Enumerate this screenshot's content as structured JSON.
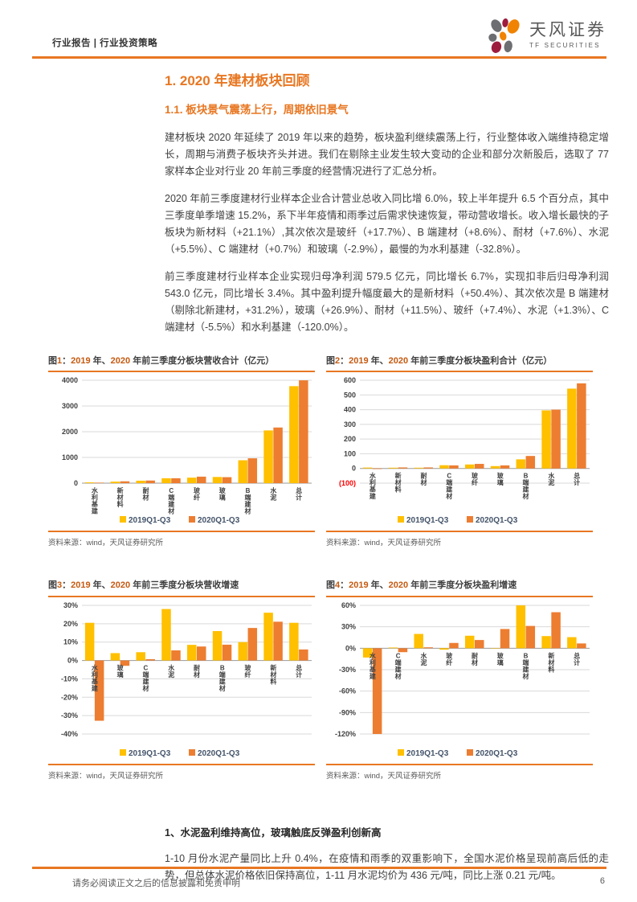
{
  "header": {
    "left": "行业报告 | 行业投资策略",
    "brand": "天风证券",
    "brand_sub": "TF SECURITIES"
  },
  "section": {
    "h1": "1. 2020 年建材板块回顾",
    "h2": "1.1. 板块景气震荡上行，周期依旧景气"
  },
  "paragraphs": [
    "建材板块 2020 年延续了 2019 年以来的趋势，板块盈利继续震荡上行，行业整体收入端维持稳定增长，周期与消费子板块齐头并进。我们在剔除主业发生较大变动的企业和部分次新股后，选取了 77 家样本企业对行业 20 年前三季度的经营情况进行了汇总分析。",
    "2020 年前三季度建材行业样本企业合计营业总收入同比增 6.0%，较上半年提升 6.5 个百分点，其中三季度单季增速 15.2%，系下半年疫情和雨季过后需求快速恢复，带动营收增长。收入增长最快的子板块为新材料（+21.1%）,其次依次是玻纤（+17.7%）、B 端建材（+8.6%）、耐材（+7.6%）、水泥（+5.5%）、C 端建材（+0.7%）和玻璃（-2.9%），最慢的为水利基建（-32.8%）。",
    "前三季度建材行业样本企业实现归母净利润 579.5 亿元，同比增长 6.7%，实现扣非后归母净利润 543.0 亿元，同比增长 3.4%。其中盈利提升幅度最大的是新材料（+50.4%）、其次依次是 B 端建材（剔除北新建材，+31.2%），玻璃（+26.9%）、耐材（+11.5%）、玻纤（+7.4%）、水泥（+1.3%）、C 端建材（-5.5%）和水利基建（-120.0%）。"
  ],
  "figures": [
    {
      "title": "图1：2019 年、2020 年前三季度分板块营收合计（亿元）",
      "source": "资料来源：wind，天风证券研究所"
    },
    {
      "title": "图2：2019 年、2020 年前三季度分板块盈利合计（亿元）",
      "source": "资料来源：wind，天风证券研究所"
    },
    {
      "title": "图3：2019 年、2020 年前三季度分板块营收增速",
      "source": "资料来源：wind，天风证券研究所"
    },
    {
      "title": "图4：2019 年、2020 年前三季度分板块盈利增速",
      "source": "资料来源：wind，天风证券研究所"
    }
  ],
  "chart_data": [
    {
      "type": "bar",
      "title": "图1：2019 年、2020 年前三季度分板块营收合计（亿元）",
      "categories": [
        "水利基建",
        "新材料",
        "耐材",
        "C端建材",
        "玻纤",
        "玻璃",
        "B端建材",
        "水泥",
        "总计"
      ],
      "series": [
        {
          "name": "2019Q1-Q3",
          "color": "#FFC000",
          "values": [
            30,
            60,
            95,
            190,
            215,
            240,
            890,
            2050,
            3770
          ]
        },
        {
          "name": "2020Q1-Q3",
          "color": "#ED7D31",
          "values": [
            20,
            72,
            102,
            191,
            253,
            233,
            966,
            2163,
            3996
          ]
        }
      ],
      "xlabel": "",
      "ylabel": "",
      "ylim": [
        0,
        4000
      ],
      "ytick_step": 1000,
      "tick_format": "number",
      "grid": true,
      "legend_position": "bottom"
    },
    {
      "type": "bar",
      "title": "图2：2019 年、2020 年前三季度分板块盈利合计（亿元）",
      "categories": [
        "水利基建",
        "新材料",
        "耐材",
        "C端建材",
        "玻纤",
        "玻璃",
        "B端建材",
        "水泥",
        "总计"
      ],
      "series": [
        {
          "name": "2019Q1-Q3",
          "color": "#FFC000",
          "values": [
            6,
            5,
            5,
            22,
            27,
            16,
            62,
            395,
            543
          ]
        },
        {
          "name": "2020Q1-Q3",
          "color": "#ED7D31",
          "values": [
            -4,
            7,
            7,
            21,
            31,
            21,
            85,
            400,
            579
          ]
        }
      ],
      "xlabel": "",
      "ylabel": "",
      "ylim": [
        -100,
        600
      ],
      "ytick_step": 100,
      "tick_format": "paren_negative",
      "grid": true,
      "legend_position": "bottom"
    },
    {
      "type": "bar",
      "title": "图3：2019 年、2020 年前三季度分板块营收增速",
      "categories": [
        "水利基建",
        "玻璃",
        "C端建材",
        "水泥",
        "耐材",
        "B端建材",
        "玻纤",
        "新材料",
        "总计"
      ],
      "series": [
        {
          "name": "2019Q1-Q3",
          "color": "#FFC000",
          "values": [
            20.5,
            4,
            4.5,
            28,
            8.5,
            16,
            10,
            26,
            20.5
          ]
        },
        {
          "name": "2020Q1-Q3",
          "color": "#ED7D31",
          "values": [
            -32.8,
            -2.9,
            0.7,
            5.5,
            7.6,
            8.6,
            17.7,
            21.1,
            6.0
          ]
        }
      ],
      "xlabel": "",
      "ylabel": "",
      "ylim": [
        -40,
        30
      ],
      "ytick_step": 10,
      "tick_format": "percent",
      "grid": true,
      "legend_position": "bottom"
    },
    {
      "type": "bar",
      "title": "图4：2019 年、2020 年前三季度分板块盈利增速",
      "categories": [
        "水利基建",
        "C端建材",
        "水泥",
        "玻纤",
        "耐材",
        "玻璃",
        "B端建材",
        "新材料",
        "总计"
      ],
      "series": [
        {
          "name": "2019Q1-Q3",
          "color": "#FFC000",
          "values": [
            -13,
            1,
            20,
            -2,
            17.5,
            0,
            60,
            17,
            15.5
          ]
        },
        {
          "name": "2020Q1-Q3",
          "color": "#ED7D31",
          "values": [
            -120,
            -5.5,
            1.3,
            7.4,
            11.5,
            26.9,
            31.2,
            50.4,
            6.7
          ]
        }
      ],
      "xlabel": "",
      "ylabel": "",
      "ylim": [
        -120,
        60
      ],
      "ytick_step": 30,
      "tick_format": "percent",
      "grid": true,
      "legend_position": "bottom"
    }
  ],
  "sub_section": {
    "heading": "1、水泥盈利维持高位，玻璃触底反弹盈利创新高",
    "paragraph": "1-10 月份水泥产量同比上升 0.4%，在疫情和雨季的双重影响下，全国水泥价格呈现前高后低的走势，但总体水泥价格依旧保持高位，1-11 月水泥均价为 436 元/吨，同比上涨 0.21 元/吨。"
  },
  "footer": {
    "disclaimer": "请务必阅读正文之后的信息披露和免责申明",
    "page": "6"
  },
  "colors": {
    "brand_orange": "#E87722",
    "series_2019": "#FFC000",
    "series_2020": "#ED7D31",
    "negative_tick_red": "#FF0000"
  }
}
